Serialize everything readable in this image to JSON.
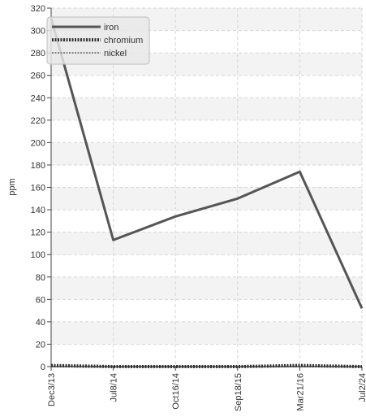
{
  "chart_data": {
    "type": "line",
    "title": "",
    "xlabel": "",
    "ylabel": "ppm",
    "categories": [
      "Dec3/13",
      "Jul8/14",
      "Oct16/14",
      "Sep18/15",
      "Mar21/16",
      "Jul2/24"
    ],
    "ylim": [
      0,
      320
    ],
    "yticks": [
      0,
      20,
      40,
      60,
      80,
      100,
      120,
      140,
      160,
      180,
      200,
      220,
      240,
      260,
      280,
      300,
      320
    ],
    "grid": true,
    "legend_position": "top-left",
    "series": [
      {
        "name": "iron",
        "values": [
          311,
          113,
          134,
          150,
          174,
          52
        ],
        "color": "#555555",
        "style": "solid"
      },
      {
        "name": "chromium",
        "values": [
          1,
          0,
          0,
          0,
          1,
          0
        ],
        "color": "#333333",
        "style": "dotted-thick"
      },
      {
        "name": "nickel",
        "values": [
          0,
          0,
          0,
          0,
          0,
          0
        ],
        "color": "#888888",
        "style": "dotted-thin"
      }
    ]
  }
}
